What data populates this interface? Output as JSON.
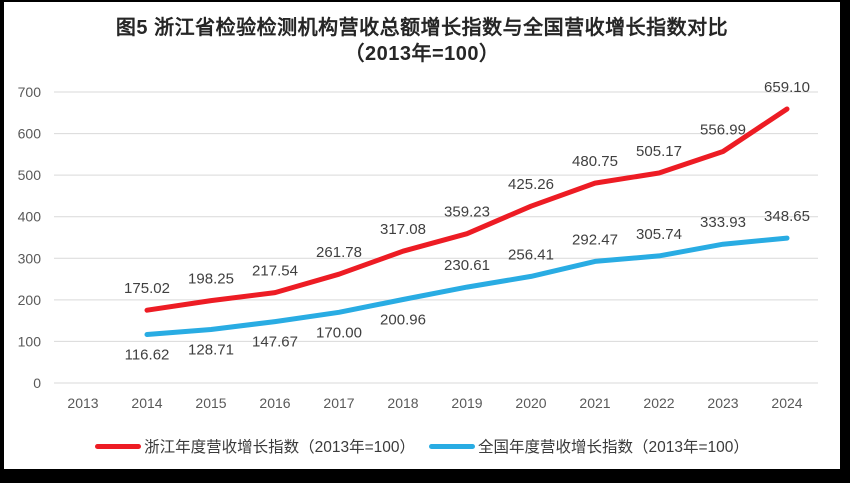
{
  "chart_data": {
    "type": "line",
    "title": "图5  浙江省检验检测机构营收总额增长指数与全国营收增长指数对比",
    "subtitle": "（2013年=100）",
    "x_categories": [
      "2013",
      "2014",
      "2015",
      "2016",
      "2017",
      "2018",
      "2019",
      "2020",
      "2021",
      "2022",
      "2023",
      "2024"
    ],
    "xlabel": "",
    "ylabel": "",
    "ylim": [
      0,
      700
    ],
    "ytick_step": 100,
    "yticks": [
      0,
      100,
      200,
      300,
      400,
      500,
      600,
      700
    ],
    "grid": "horizontal",
    "legend_position": "bottom",
    "gridline_color": "#D9D9D9",
    "axis_tick_color": "#595959",
    "data_label_color": "#404040",
    "series": [
      {
        "name": "浙江年度营收增长指数（2013年=100）",
        "color": "#ED1C24",
        "start_category": "2014",
        "values": [
          175.02,
          198.25,
          217.54,
          261.78,
          317.08,
          359.23,
          425.26,
          480.75,
          505.17,
          556.99,
          659.1
        ],
        "label_side": [
          "above",
          "above",
          "above",
          "above",
          "above",
          "above",
          "above",
          "above",
          "above",
          "above",
          "above"
        ]
      },
      {
        "name": "全国年度营收增长指数（2013年=100）",
        "color": "#29ACE3",
        "start_category": "2014",
        "values": [
          116.62,
          128.71,
          147.67,
          170.0,
          200.96,
          230.61,
          256.41,
          292.47,
          305.74,
          333.93,
          348.65
        ],
        "label_side": [
          "below",
          "below",
          "below",
          "below",
          "below",
          "above",
          "above",
          "above",
          "above",
          "above",
          "above"
        ]
      }
    ]
  }
}
